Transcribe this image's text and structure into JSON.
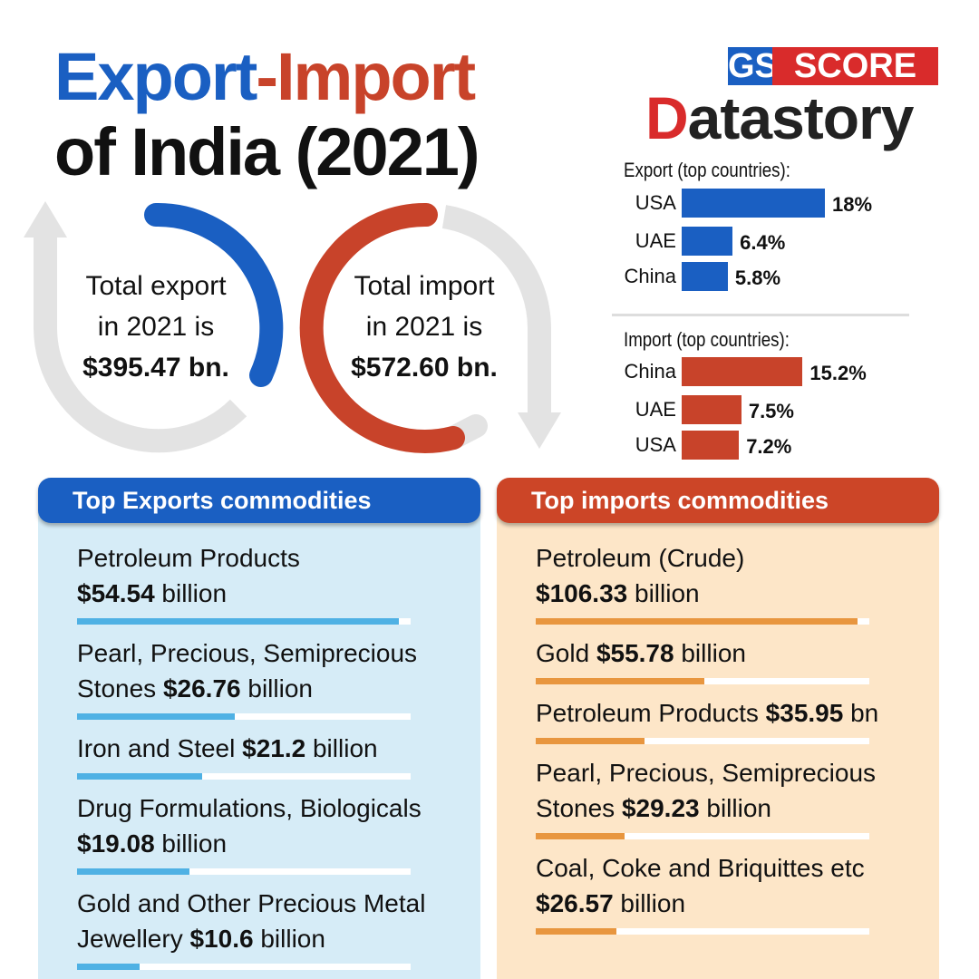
{
  "header": {
    "title_export": "Export",
    "title_import": "-Import",
    "title_line2": "of India (2021)"
  },
  "logo": {
    "gs": "GS",
    "score": "SCORE",
    "brand_initial": "D",
    "brand_rest": "atastory"
  },
  "totals": {
    "export": {
      "lines": [
        "Total export",
        "in 2021 is"
      ],
      "amount": "$395.47 bn."
    },
    "import": {
      "lines": [
        "Total import",
        "in 2021 is"
      ],
      "amount": "$572.60 bn."
    }
  },
  "countries": {
    "export": {
      "title": "Export (top countries):",
      "color": "#1a5fc2",
      "items": [
        {
          "name": "USA",
          "value": 18,
          "value_label": "18%"
        },
        {
          "name": "UAE",
          "value": 6.4,
          "value_label": "6.4%"
        },
        {
          "name": "China",
          "value": 5.8,
          "value_label": "5.8%"
        }
      ]
    },
    "import": {
      "title": "Import (top countries):",
      "color": "#c8432a",
      "items": [
        {
          "name": "China",
          "value": 15.2,
          "value_label": "15.2%"
        },
        {
          "name": "UAE",
          "value": 7.5,
          "value_label": "7.5%"
        },
        {
          "name": "USA",
          "value": 7.2,
          "value_label": "7.2%"
        }
      ]
    }
  },
  "commodities": {
    "export": {
      "title": "Top Exports commodities",
      "color": "#4fb1e4",
      "items": [
        {
          "name": "Petroleum Products",
          "value": 54.54,
          "value_label": "$54.54",
          "unit": "billion"
        },
        {
          "name": "Pearl, Precious, Semiprecious Stones",
          "value": 26.76,
          "value_label": "$26.76",
          "unit": "billion"
        },
        {
          "name": "Iron and Steel",
          "value": 21.2,
          "value_label": "$21.2",
          "unit": "billion"
        },
        {
          "name": "Drug Formulations, Biologicals",
          "value": 19.08,
          "value_label": "$19.08",
          "unit": "billion"
        },
        {
          "name": "Gold and Other Precious Metal Jewellery",
          "value": 10.6,
          "value_label": "$10.6",
          "unit": "billion"
        }
      ]
    },
    "import": {
      "title": "Top imports commodities",
      "color": "#e8963f",
      "items": [
        {
          "name": "Petroleum (Crude)",
          "value": 106.33,
          "value_label": "$106.33",
          "unit": "billion"
        },
        {
          "name": "Gold",
          "value": 55.78,
          "value_label": "$55.78",
          "unit": "billion"
        },
        {
          "name": "Petroleum Products",
          "value": 35.95,
          "value_label": "$35.95",
          "unit": "bn"
        },
        {
          "name": "Pearl, Precious, Semiprecious Stones",
          "value": 29.23,
          "value_label": "$29.23",
          "unit": "billion"
        },
        {
          "name": "Coal, Coke and Briquittes etc",
          "value": 26.57,
          "value_label": "$26.57",
          "unit": "billion"
        }
      ]
    }
  }
}
